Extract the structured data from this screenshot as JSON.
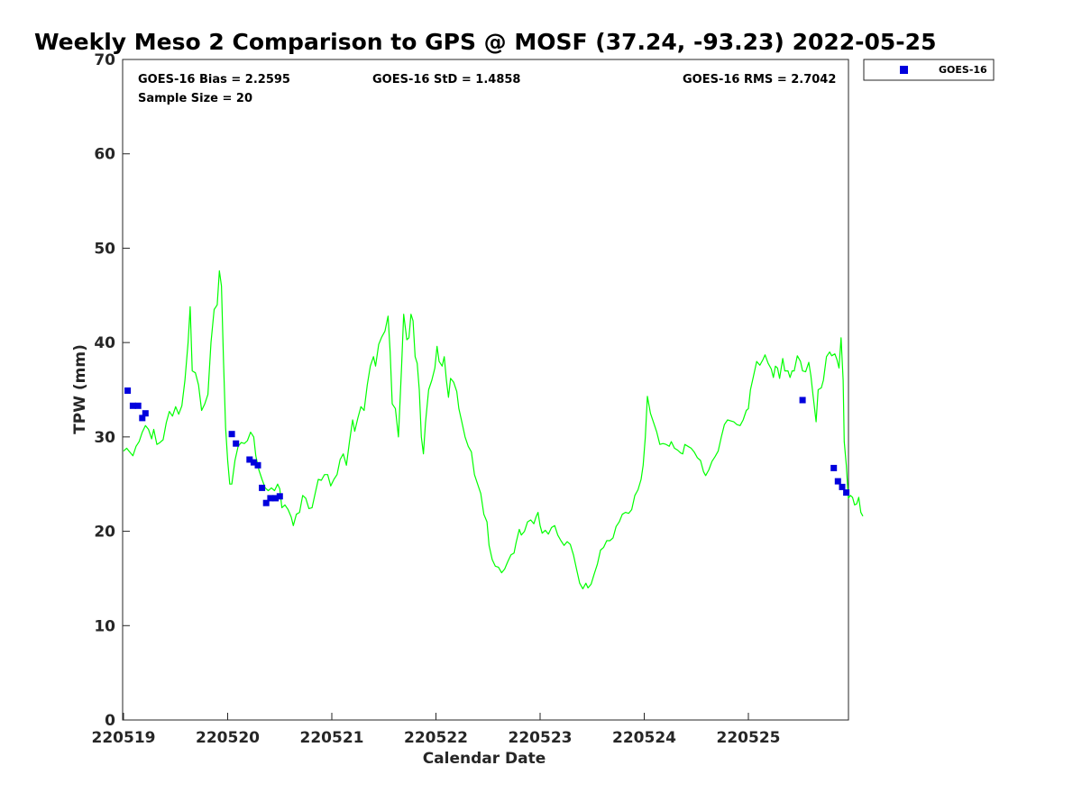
{
  "chart_data": {
    "type": "line",
    "title": "Weekly Meso 2 Comparison to GPS @ MOSF (37.24, -93.23) 2022-05-25",
    "xlabel": "Calendar Date",
    "ylabel": "TPW (mm)",
    "xlim": [
      0,
      6.97
    ],
    "ylim": [
      0,
      70
    ],
    "x_tick_values": [
      0,
      1,
      2,
      3,
      4,
      5,
      6
    ],
    "x_tick_labels": [
      "220519",
      "220520",
      "220521",
      "220522",
      "220523",
      "220524",
      "220525"
    ],
    "y_tick_values": [
      0,
      10,
      20,
      30,
      40,
      50,
      60,
      70
    ],
    "y_tick_labels": [
      "0",
      "10",
      "20",
      "30",
      "40",
      "50",
      "60",
      "70"
    ],
    "stats": {
      "bias": "GOES-16 Bias = 2.2595",
      "std": "GOES-16 StD = 1.4858",
      "rms": "GOES-16 RMS = 2.7042",
      "sample_size": "Sample Size = 20"
    },
    "legend": {
      "position": "top-right, outside plot",
      "entries": [
        "GOES-16"
      ]
    },
    "series": [
      {
        "name": "GPS",
        "style": "line",
        "color": "#00ff00",
        "points": [
          [
            0.0,
            28.5
          ],
          [
            0.03,
            28.8
          ],
          [
            0.06,
            28.4
          ],
          [
            0.09,
            28.0
          ],
          [
            0.12,
            29.0
          ],
          [
            0.15,
            29.5
          ],
          [
            0.18,
            30.5
          ],
          [
            0.21,
            31.2
          ],
          [
            0.24,
            30.8
          ],
          [
            0.27,
            29.8
          ],
          [
            0.29,
            30.8
          ],
          [
            0.32,
            29.2
          ],
          [
            0.35,
            29.4
          ],
          [
            0.38,
            29.7
          ],
          [
            0.41,
            31.5
          ],
          [
            0.44,
            32.7
          ],
          [
            0.47,
            32.2
          ],
          [
            0.5,
            33.2
          ],
          [
            0.53,
            32.4
          ],
          [
            0.56,
            33.3
          ],
          [
            0.59,
            36.0
          ],
          [
            0.62,
            40.0
          ],
          [
            0.64,
            43.8
          ],
          [
            0.66,
            37.0
          ],
          [
            0.69,
            36.8
          ],
          [
            0.72,
            35.5
          ],
          [
            0.75,
            32.8
          ],
          [
            0.78,
            33.5
          ],
          [
            0.81,
            34.5
          ],
          [
            0.84,
            40.0
          ],
          [
            0.87,
            43.5
          ],
          [
            0.9,
            44.0
          ],
          [
            0.92,
            47.6
          ],
          [
            0.94,
            46.0
          ],
          [
            0.96,
            38.0
          ],
          [
            0.98,
            31.0
          ],
          [
            1.0,
            27.5
          ],
          [
            1.02,
            25.0
          ],
          [
            1.04,
            25.0
          ],
          [
            1.07,
            27.5
          ],
          [
            1.1,
            29.0
          ],
          [
            1.13,
            29.4
          ],
          [
            1.16,
            29.3
          ],
          [
            1.19,
            29.6
          ],
          [
            1.22,
            30.5
          ],
          [
            1.25,
            30.0
          ],
          [
            1.27,
            28.0
          ],
          [
            1.3,
            26.5
          ],
          [
            1.33,
            25.5
          ],
          [
            1.36,
            24.6
          ],
          [
            1.39,
            24.3
          ],
          [
            1.42,
            24.6
          ],
          [
            1.45,
            24.3
          ],
          [
            1.48,
            25.0
          ],
          [
            1.5,
            24.5
          ],
          [
            1.52,
            22.5
          ],
          [
            1.55,
            22.8
          ],
          [
            1.58,
            22.3
          ],
          [
            1.61,
            21.5
          ],
          [
            1.63,
            20.6
          ],
          [
            1.66,
            21.8
          ],
          [
            1.69,
            22.0
          ],
          [
            1.72,
            23.8
          ],
          [
            1.75,
            23.5
          ],
          [
            1.78,
            22.4
          ],
          [
            1.81,
            22.5
          ],
          [
            1.84,
            24.0
          ],
          [
            1.87,
            25.5
          ],
          [
            1.9,
            25.4
          ],
          [
            1.93,
            26.0
          ],
          [
            1.96,
            26.0
          ],
          [
            1.99,
            24.8
          ],
          [
            2.02,
            25.5
          ],
          [
            2.05,
            26.0
          ],
          [
            2.08,
            27.6
          ],
          [
            2.11,
            28.2
          ],
          [
            2.14,
            27.0
          ],
          [
            2.17,
            29.5
          ],
          [
            2.2,
            31.8
          ],
          [
            2.22,
            30.6
          ],
          [
            2.25,
            32.0
          ],
          [
            2.28,
            33.2
          ],
          [
            2.31,
            32.8
          ],
          [
            2.34,
            35.5
          ],
          [
            2.37,
            37.5
          ],
          [
            2.4,
            38.5
          ],
          [
            2.42,
            37.5
          ],
          [
            2.45,
            39.8
          ],
          [
            2.48,
            40.6
          ],
          [
            2.51,
            41.2
          ],
          [
            2.54,
            42.8
          ],
          [
            2.56,
            39.0
          ],
          [
            2.58,
            33.5
          ],
          [
            2.61,
            33.0
          ],
          [
            2.64,
            30.0
          ],
          [
            2.67,
            37.5
          ],
          [
            2.69,
            43.0
          ],
          [
            2.72,
            40.3
          ],
          [
            2.74,
            40.5
          ],
          [
            2.76,
            43.0
          ],
          [
            2.78,
            42.3
          ],
          [
            2.8,
            38.5
          ],
          [
            2.82,
            37.8
          ],
          [
            2.84,
            35.0
          ],
          [
            2.86,
            30.0
          ],
          [
            2.88,
            28.2
          ],
          [
            2.9,
            31.5
          ],
          [
            2.93,
            35.0
          ],
          [
            2.96,
            36.0
          ],
          [
            2.99,
            37.3
          ],
          [
            3.01,
            39.6
          ],
          [
            3.03,
            38.0
          ],
          [
            3.06,
            37.5
          ],
          [
            3.08,
            38.5
          ],
          [
            3.1,
            36.0
          ],
          [
            3.12,
            34.2
          ],
          [
            3.14,
            36.2
          ],
          [
            3.17,
            35.8
          ],
          [
            3.2,
            34.8
          ],
          [
            3.22,
            33.0
          ],
          [
            3.25,
            31.5
          ],
          [
            3.28,
            30.0
          ],
          [
            3.31,
            29.0
          ],
          [
            3.34,
            28.4
          ],
          [
            3.37,
            26.0
          ],
          [
            3.4,
            25.0
          ],
          [
            3.43,
            24.0
          ],
          [
            3.46,
            21.8
          ],
          [
            3.49,
            21.0
          ],
          [
            3.51,
            18.5
          ],
          [
            3.54,
            17.0
          ],
          [
            3.57,
            16.3
          ],
          [
            3.6,
            16.2
          ],
          [
            3.63,
            15.6
          ],
          [
            3.66,
            16.0
          ],
          [
            3.69,
            16.8
          ],
          [
            3.72,
            17.5
          ],
          [
            3.75,
            17.7
          ],
          [
            3.77,
            18.8
          ],
          [
            3.8,
            20.2
          ],
          [
            3.82,
            19.6
          ],
          [
            3.85,
            20.0
          ],
          [
            3.88,
            21.0
          ],
          [
            3.91,
            21.2
          ],
          [
            3.94,
            20.8
          ],
          [
            3.96,
            21.5
          ],
          [
            3.98,
            22.0
          ],
          [
            4.0,
            20.6
          ],
          [
            4.02,
            19.8
          ],
          [
            4.05,
            20.1
          ],
          [
            4.08,
            19.7
          ],
          [
            4.11,
            20.4
          ],
          [
            4.14,
            20.6
          ],
          [
            4.17,
            19.6
          ],
          [
            4.2,
            19.0
          ],
          [
            4.23,
            18.5
          ],
          [
            4.26,
            18.9
          ],
          [
            4.29,
            18.6
          ],
          [
            4.32,
            17.5
          ],
          [
            4.35,
            16.0
          ],
          [
            4.38,
            14.5
          ],
          [
            4.41,
            13.9
          ],
          [
            4.44,
            14.5
          ],
          [
            4.46,
            14.0
          ],
          [
            4.49,
            14.4
          ],
          [
            4.52,
            15.5
          ],
          [
            4.55,
            16.5
          ],
          [
            4.58,
            18.0
          ],
          [
            4.61,
            18.3
          ],
          [
            4.64,
            19.0
          ],
          [
            4.67,
            19.0
          ],
          [
            4.7,
            19.3
          ],
          [
            4.73,
            20.5
          ],
          [
            4.76,
            21.0
          ],
          [
            4.79,
            21.8
          ],
          [
            4.82,
            22.0
          ],
          [
            4.85,
            21.9
          ],
          [
            4.88,
            22.3
          ],
          [
            4.91,
            23.8
          ],
          [
            4.94,
            24.4
          ],
          [
            4.97,
            25.5
          ],
          [
            4.99,
            27.0
          ],
          [
            5.01,
            30.0
          ],
          [
            5.03,
            34.3
          ],
          [
            5.06,
            32.5
          ],
          [
            5.09,
            31.5
          ],
          [
            5.12,
            30.5
          ],
          [
            5.15,
            29.2
          ],
          [
            5.18,
            29.3
          ],
          [
            5.21,
            29.2
          ],
          [
            5.24,
            29.0
          ],
          [
            5.26,
            29.5
          ],
          [
            5.29,
            28.8
          ],
          [
            5.32,
            28.6
          ],
          [
            5.35,
            28.3
          ],
          [
            5.37,
            28.2
          ],
          [
            5.39,
            29.2
          ],
          [
            5.42,
            29.0
          ],
          [
            5.45,
            28.8
          ],
          [
            5.48,
            28.4
          ],
          [
            5.51,
            27.8
          ],
          [
            5.54,
            27.5
          ],
          [
            5.57,
            26.3
          ],
          [
            5.59,
            25.9
          ],
          [
            5.62,
            26.5
          ],
          [
            5.65,
            27.4
          ],
          [
            5.68,
            27.9
          ],
          [
            5.71,
            28.5
          ],
          [
            5.74,
            30.0
          ],
          [
            5.77,
            31.3
          ],
          [
            5.8,
            31.8
          ],
          [
            5.83,
            31.7
          ],
          [
            5.86,
            31.6
          ],
          [
            5.89,
            31.3
          ],
          [
            5.92,
            31.2
          ],
          [
            5.95,
            31.8
          ],
          [
            5.98,
            32.8
          ],
          [
            6.0,
            33.0
          ],
          [
            6.02,
            35.0
          ],
          [
            6.05,
            36.5
          ],
          [
            6.08,
            38.0
          ],
          [
            6.11,
            37.6
          ],
          [
            6.14,
            38.2
          ],
          [
            6.16,
            38.7
          ],
          [
            6.19,
            37.8
          ],
          [
            6.22,
            37.2
          ],
          [
            6.24,
            36.3
          ],
          [
            6.26,
            37.5
          ],
          [
            6.28,
            37.3
          ],
          [
            6.3,
            36.2
          ],
          [
            6.33,
            38.3
          ],
          [
            6.35,
            37.0
          ],
          [
            6.38,
            37.0
          ],
          [
            6.4,
            36.3
          ],
          [
            6.42,
            37.0
          ],
          [
            6.44,
            37.0
          ],
          [
            6.47,
            38.6
          ],
          [
            6.5,
            38.0
          ],
          [
            6.52,
            37.0
          ],
          [
            6.55,
            36.9
          ],
          [
            6.58,
            37.9
          ],
          [
            6.6,
            36.5
          ],
          [
            6.62,
            34.5
          ],
          [
            6.65,
            31.6
          ],
          [
            6.67,
            35.0
          ],
          [
            6.7,
            35.2
          ],
          [
            6.72,
            36.0
          ],
          [
            6.75,
            38.5
          ],
          [
            6.78,
            39.0
          ],
          [
            6.8,
            38.6
          ],
          [
            6.83,
            38.8
          ],
          [
            6.85,
            38.2
          ],
          [
            6.87,
            37.3
          ],
          [
            6.89,
            40.5
          ],
          [
            6.91,
            36.0
          ],
          [
            6.92,
            29.5
          ],
          [
            6.94,
            27.0
          ],
          [
            6.96,
            23.5
          ],
          [
            6.98,
            23.8
          ],
          [
            7.0,
            23.6
          ],
          [
            7.02,
            22.8
          ],
          [
            7.04,
            22.9
          ],
          [
            7.06,
            23.6
          ],
          [
            7.08,
            22.0
          ],
          [
            7.1,
            21.6
          ]
        ]
      },
      {
        "name": "GOES-16",
        "style": "marker",
        "color": "#0000dd",
        "points": [
          [
            0.04,
            34.9
          ],
          [
            0.09,
            33.3
          ],
          [
            0.14,
            33.3
          ],
          [
            0.18,
            32.0
          ],
          [
            0.21,
            32.5
          ],
          [
            1.04,
            30.3
          ],
          [
            1.08,
            29.3
          ],
          [
            1.21,
            27.6
          ],
          [
            1.25,
            27.3
          ],
          [
            1.29,
            27.0
          ],
          [
            1.33,
            24.6
          ],
          [
            1.37,
            23.0
          ],
          [
            1.41,
            23.5
          ],
          [
            1.46,
            23.5
          ],
          [
            1.5,
            23.7
          ],
          [
            6.52,
            33.9
          ],
          [
            6.82,
            26.7
          ],
          [
            6.86,
            25.3
          ],
          [
            6.9,
            24.7
          ],
          [
            6.94,
            24.1
          ]
        ]
      }
    ]
  }
}
